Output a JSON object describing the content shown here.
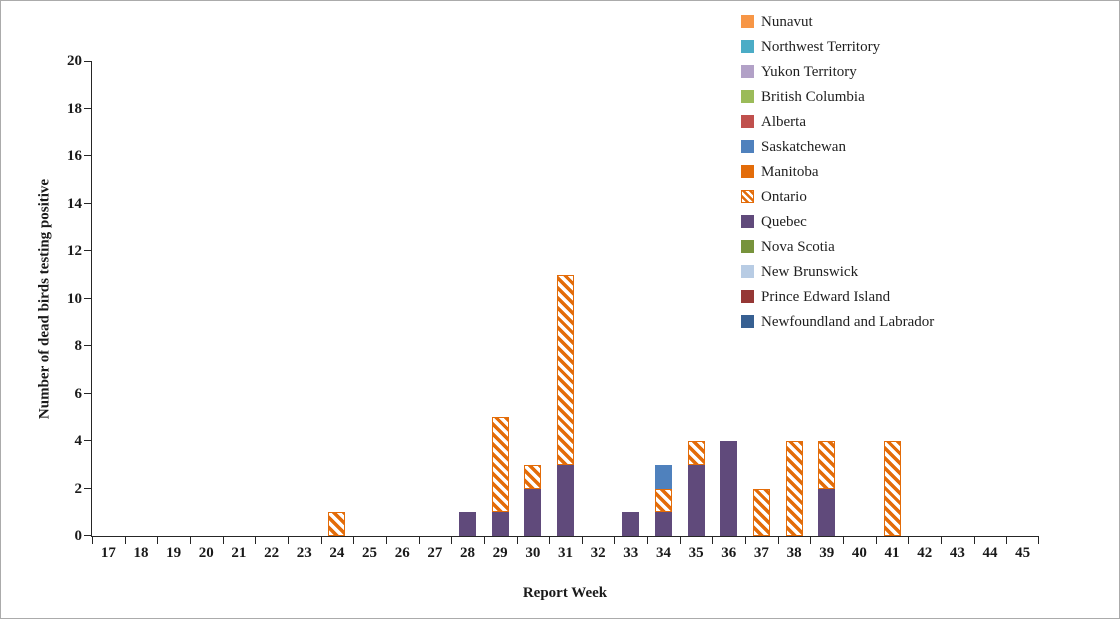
{
  "figure": {
    "background": "#FFFFFF",
    "border_color": "#ABABAB",
    "axis_color": "#262626",
    "text_color": "#1A1A1A"
  },
  "chart_data": {
    "type": "bar",
    "stacked": true,
    "title": "",
    "xlabel": "Report Week",
    "ylabel": "Number of dead birds testing positive",
    "ylim": [
      0,
      20
    ],
    "ytick_step": 2,
    "grid": false,
    "legend_position": "top-right",
    "stack_order": "reverse-of-series (last-listed series at bottom of stack)",
    "categories": [
      17,
      18,
      19,
      20,
      21,
      22,
      23,
      24,
      25,
      26,
      27,
      28,
      29,
      30,
      31,
      32,
      33,
      34,
      35,
      36,
      37,
      38,
      39,
      40,
      41,
      42,
      43,
      44,
      45
    ],
    "series": [
      {
        "name": "Nunavut",
        "color": "#F79646",
        "pattern": "solid",
        "values": [
          0,
          0,
          0,
          0,
          0,
          0,
          0,
          0,
          0,
          0,
          0,
          0,
          0,
          0,
          0,
          0,
          0,
          0,
          0,
          0,
          0,
          0,
          0,
          0,
          0,
          0,
          0,
          0,
          0
        ]
      },
      {
        "name": "Northwest Territory",
        "color": "#4BACC6",
        "pattern": "solid",
        "values": [
          0,
          0,
          0,
          0,
          0,
          0,
          0,
          0,
          0,
          0,
          0,
          0,
          0,
          0,
          0,
          0,
          0,
          0,
          0,
          0,
          0,
          0,
          0,
          0,
          0,
          0,
          0,
          0,
          0
        ]
      },
      {
        "name": "Yukon Territory",
        "color": "#B2A1C7",
        "pattern": "solid",
        "values": [
          0,
          0,
          0,
          0,
          0,
          0,
          0,
          0,
          0,
          0,
          0,
          0,
          0,
          0,
          0,
          0,
          0,
          0,
          0,
          0,
          0,
          0,
          0,
          0,
          0,
          0,
          0,
          0,
          0
        ]
      },
      {
        "name": "British Columbia",
        "color": "#9BBB59",
        "pattern": "solid",
        "values": [
          0,
          0,
          0,
          0,
          0,
          0,
          0,
          0,
          0,
          0,
          0,
          0,
          0,
          0,
          0,
          0,
          0,
          0,
          0,
          0,
          0,
          0,
          0,
          0,
          0,
          0,
          0,
          0,
          0
        ]
      },
      {
        "name": "Alberta",
        "color": "#C0504D",
        "pattern": "solid",
        "values": [
          0,
          0,
          0,
          0,
          0,
          0,
          0,
          0,
          0,
          0,
          0,
          0,
          0,
          0,
          0,
          0,
          0,
          0,
          0,
          0,
          0,
          0,
          0,
          0,
          0,
          0,
          0,
          0,
          0
        ]
      },
      {
        "name": "Saskatchewan",
        "color": "#4F81BD",
        "pattern": "solid",
        "values": [
          0,
          0,
          0,
          0,
          0,
          0,
          0,
          0,
          0,
          0,
          0,
          0,
          0,
          0,
          0,
          0,
          0,
          1,
          0,
          0,
          0,
          0,
          0,
          0,
          0,
          0,
          0,
          0,
          0
        ]
      },
      {
        "name": "Manitoba",
        "color": "#E36C09",
        "pattern": "solid",
        "values": [
          0,
          0,
          0,
          0,
          0,
          0,
          0,
          0,
          0,
          0,
          0,
          0,
          0,
          0,
          0,
          0,
          0,
          0,
          0,
          0,
          0,
          0,
          0,
          0,
          0,
          0,
          0,
          0,
          0
        ]
      },
      {
        "name": "Ontario",
        "color": "#E36C09",
        "pattern": "diagonal-hatch",
        "values": [
          0,
          0,
          0,
          0,
          0,
          0,
          0,
          1,
          0,
          0,
          0,
          0,
          4,
          1,
          8,
          0,
          0,
          1,
          1,
          0,
          2,
          4,
          2,
          0,
          4,
          0,
          0,
          0,
          0
        ]
      },
      {
        "name": "Quebec",
        "color": "#604A7B",
        "pattern": "solid",
        "values": [
          0,
          0,
          0,
          0,
          0,
          0,
          0,
          0,
          0,
          0,
          0,
          1,
          1,
          2,
          3,
          0,
          1,
          1,
          3,
          4,
          0,
          0,
          2,
          0,
          0,
          0,
          0,
          0,
          0
        ]
      },
      {
        "name": "Nova Scotia",
        "color": "#77933C",
        "pattern": "solid",
        "values": [
          0,
          0,
          0,
          0,
          0,
          0,
          0,
          0,
          0,
          0,
          0,
          0,
          0,
          0,
          0,
          0,
          0,
          0,
          0,
          0,
          0,
          0,
          0,
          0,
          0,
          0,
          0,
          0,
          0
        ]
      },
      {
        "name": "New Brunswick",
        "color": "#B8CCE4",
        "pattern": "solid",
        "values": [
          0,
          0,
          0,
          0,
          0,
          0,
          0,
          0,
          0,
          0,
          0,
          0,
          0,
          0,
          0,
          0,
          0,
          0,
          0,
          0,
          0,
          0,
          0,
          0,
          0,
          0,
          0,
          0,
          0
        ]
      },
      {
        "name": "Prince Edward Island",
        "color": "#953735",
        "pattern": "solid",
        "values": [
          0,
          0,
          0,
          0,
          0,
          0,
          0,
          0,
          0,
          0,
          0,
          0,
          0,
          0,
          0,
          0,
          0,
          0,
          0,
          0,
          0,
          0,
          0,
          0,
          0,
          0,
          0,
          0,
          0
        ]
      },
      {
        "name": "Newfoundland and Labrador",
        "color": "#376092",
        "pattern": "solid",
        "values": [
          0,
          0,
          0,
          0,
          0,
          0,
          0,
          0,
          0,
          0,
          0,
          0,
          0,
          0,
          0,
          0,
          0,
          0,
          0,
          0,
          0,
          0,
          0,
          0,
          0,
          0,
          0,
          0,
          0
        ]
      }
    ]
  }
}
